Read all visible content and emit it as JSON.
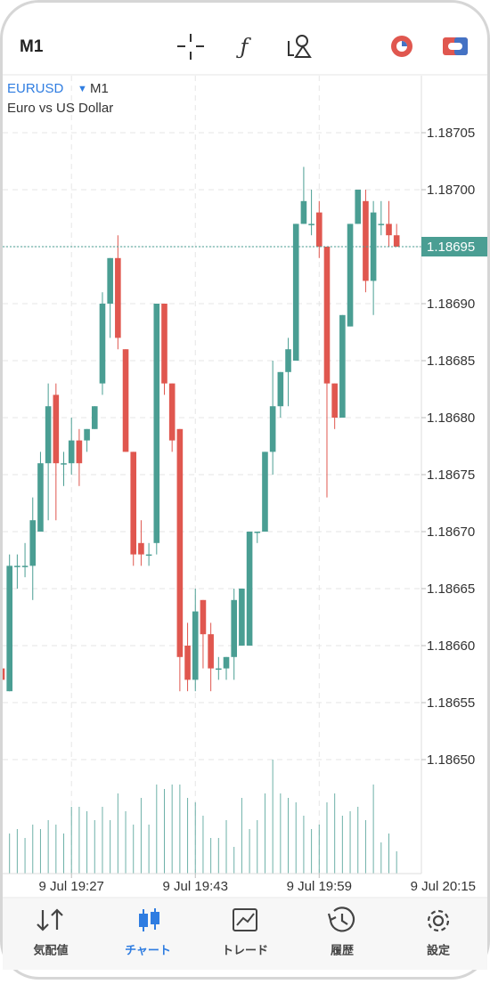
{
  "header": {
    "timeframe": "M1"
  },
  "chart_data": {
    "type": "candlestick",
    "symbol": "EURUSD",
    "timeframe": "M1",
    "description": "Euro vs US Dollar",
    "up_color": "#4a9e93",
    "down_color": "#e0574f",
    "grid": true,
    "open": [
      1.18658,
      1.18656,
      1.18667,
      1.18667,
      1.18667,
      1.1867,
      1.18676,
      1.18682,
      1.18676,
      1.18676,
      1.18678,
      1.18678,
      1.18679,
      1.18683,
      1.1869,
      1.18694,
      1.18686,
      1.18677,
      1.18669,
      1.18668,
      1.18669,
      1.1869,
      1.18683,
      1.18679,
      1.1866,
      1.18657,
      1.18664,
      1.18661,
      1.18658,
      1.18658,
      1.18659,
      1.1866,
      1.1866,
      1.1867,
      1.1867,
      1.18677,
      1.18681,
      1.18684,
      1.18685,
      1.18697,
      1.18697,
      1.18698,
      1.18695,
      1.18683,
      1.1868,
      1.18688,
      1.18697,
      1.18699,
      1.18692,
      1.18697,
      1.18697,
      1.18696
    ],
    "high": [
      1.18658,
      1.18668,
      1.18668,
      1.18669,
      1.18673,
      1.18677,
      1.18683,
      1.18683,
      1.18677,
      1.1868,
      1.18679,
      1.18679,
      1.18681,
      1.18691,
      1.18694,
      1.18696,
      1.18686,
      1.18677,
      1.18671,
      1.18669,
      1.1869,
      1.1869,
      1.18683,
      1.18679,
      1.18662,
      1.18665,
      1.18664,
      1.18662,
      1.18659,
      1.18659,
      1.18665,
      1.18665,
      1.1867,
      1.1867,
      1.18677,
      1.18685,
      1.18684,
      1.18687,
      1.18697,
      1.18702,
      1.187,
      1.18699,
      1.18695,
      1.18683,
      1.18689,
      1.18697,
      1.187,
      1.187,
      1.18699,
      1.18699,
      1.18699,
      1.18697
    ],
    "low": [
      1.18657,
      1.18656,
      1.18665,
      1.18666,
      1.18664,
      1.1867,
      1.18671,
      1.18671,
      1.18674,
      1.18675,
      1.18674,
      1.18677,
      1.18679,
      1.18682,
      1.18687,
      1.18686,
      1.18677,
      1.18667,
      1.18667,
      1.18667,
      1.18668,
      1.18682,
      1.18677,
      1.18656,
      1.18656,
      1.18656,
      1.18658,
      1.18656,
      1.18657,
      1.18657,
      1.18657,
      1.1866,
      1.1866,
      1.18669,
      1.1867,
      1.18675,
      1.1868,
      1.18681,
      1.18685,
      1.18697,
      1.18696,
      1.18694,
      1.18673,
      1.18679,
      1.1868,
      1.18688,
      1.18697,
      1.18691,
      1.18689,
      1.18696,
      1.18695,
      1.18695
    ],
    "close": [
      1.18657,
      1.18667,
      1.18667,
      1.18667,
      1.18671,
      1.18676,
      1.18681,
      1.18676,
      1.18676,
      1.18678,
      1.18676,
      1.18679,
      1.18681,
      1.1869,
      1.18694,
      1.18687,
      1.18677,
      1.18668,
      1.18668,
      1.18668,
      1.1869,
      1.18683,
      1.18678,
      1.18659,
      1.18657,
      1.18663,
      1.18661,
      1.18658,
      1.18658,
      1.18659,
      1.18664,
      1.18665,
      1.1867,
      1.1867,
      1.18677,
      1.18681,
      1.18684,
      1.18686,
      1.18697,
      1.18699,
      1.18697,
      1.18695,
      1.18683,
      1.1868,
      1.18689,
      1.18697,
      1.187,
      1.18692,
      1.18698,
      1.18697,
      1.18696,
      1.18695
    ],
    "volume": [
      35,
      45,
      50,
      40,
      55,
      50,
      60,
      55,
      45,
      75,
      75,
      70,
      60,
      75,
      60,
      90,
      70,
      55,
      85,
      55,
      100,
      95,
      100,
      100,
      85,
      80,
      65,
      40,
      40,
      60,
      30,
      85,
      50,
      60,
      90,
      128,
      90,
      85,
      80,
      65,
      50,
      55,
      80,
      90,
      65,
      70,
      75,
      60,
      100,
      35,
      45,
      25
    ],
    "ylim": [
      1.1864,
      1.1871
    ],
    "yticks": [
      1.18705,
      {
        "value": 1.187,
        "label": "1.18700"
      },
      1.18695,
      {
        "value": 1.1869,
        "label": "1.18690"
      },
      1.18685,
      {
        "value": 1.1868,
        "label": "1.18680"
      },
      1.18675,
      {
        "value": 1.1867,
        "label": "1.18670"
      },
      1.18665,
      {
        "value": 1.1866,
        "label": "1.18660"
      },
      1.18655,
      {
        "value": 1.1865,
        "label": "1.18650"
      }
    ],
    "current_price": 1.18695,
    "xticks": [
      {
        "value": 9,
        "label": "9 Jul 19:27"
      },
      {
        "value": 25,
        "label": "9 Jul 19:43"
      },
      {
        "value": 41,
        "label": "9 Jul 19:59"
      },
      {
        "value": 57,
        "label": "9 Jul 20:15"
      }
    ]
  },
  "nav": [
    {
      "label": "気配値",
      "active": false
    },
    {
      "label": "チャート",
      "active": true
    },
    {
      "label": "トレード",
      "active": false
    },
    {
      "label": "履歴",
      "active": false
    },
    {
      "label": "設定",
      "active": false
    }
  ]
}
